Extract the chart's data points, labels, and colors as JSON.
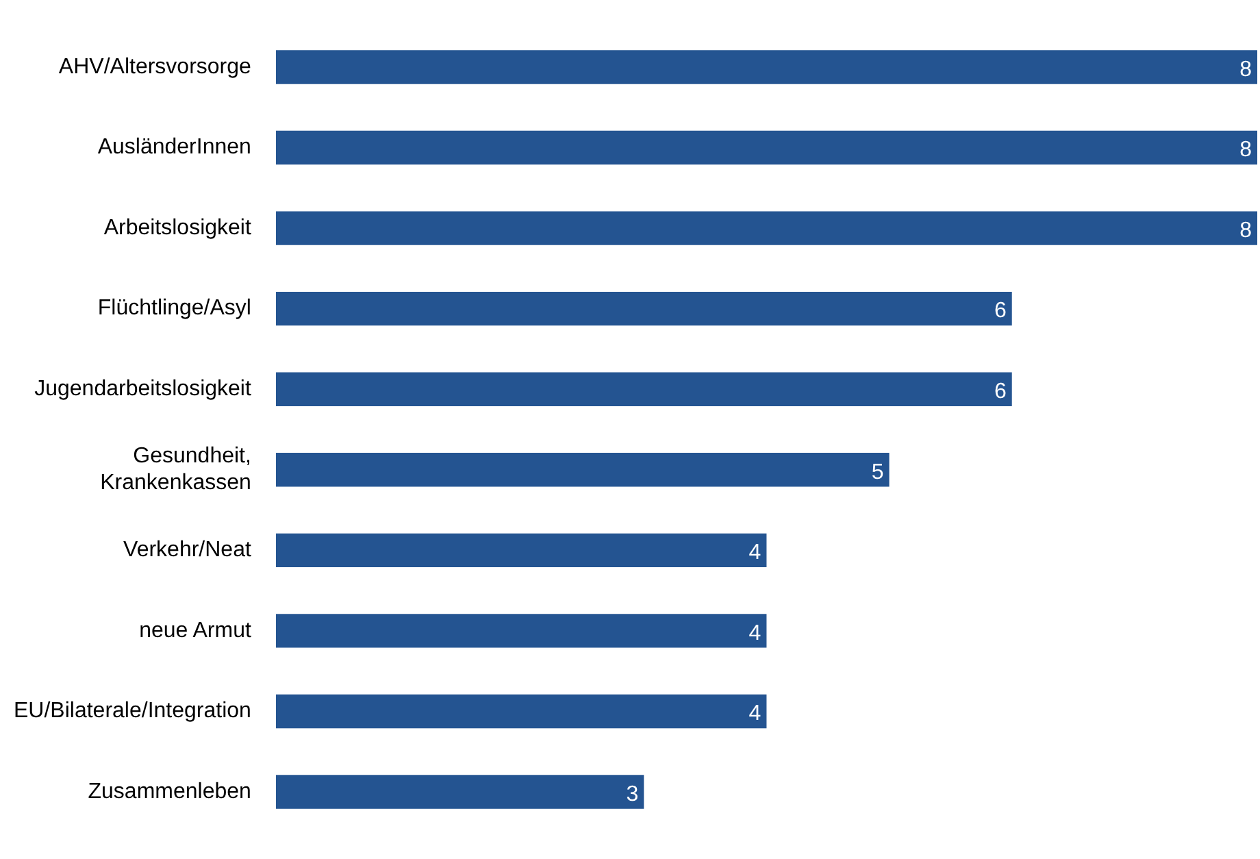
{
  "chart_data": {
    "type": "bar",
    "orientation": "horizontal",
    "data_labels": true,
    "color": "#245491",
    "categories": [
      "AHV/Altersvorsorge",
      "AusländerInnen",
      "Arbeitslosigkeit",
      "Flüchtlinge/Asyl",
      "Jugendarbeitslosigkeit",
      "Gesundheit, Krankenkassen",
      "Verkehr/Neat",
      "neue Armut",
      "EU/Bilaterale/Integration",
      "Zusammenleben"
    ],
    "values": [
      8,
      8,
      8,
      6,
      6,
      5,
      4,
      4,
      4,
      3
    ]
  }
}
